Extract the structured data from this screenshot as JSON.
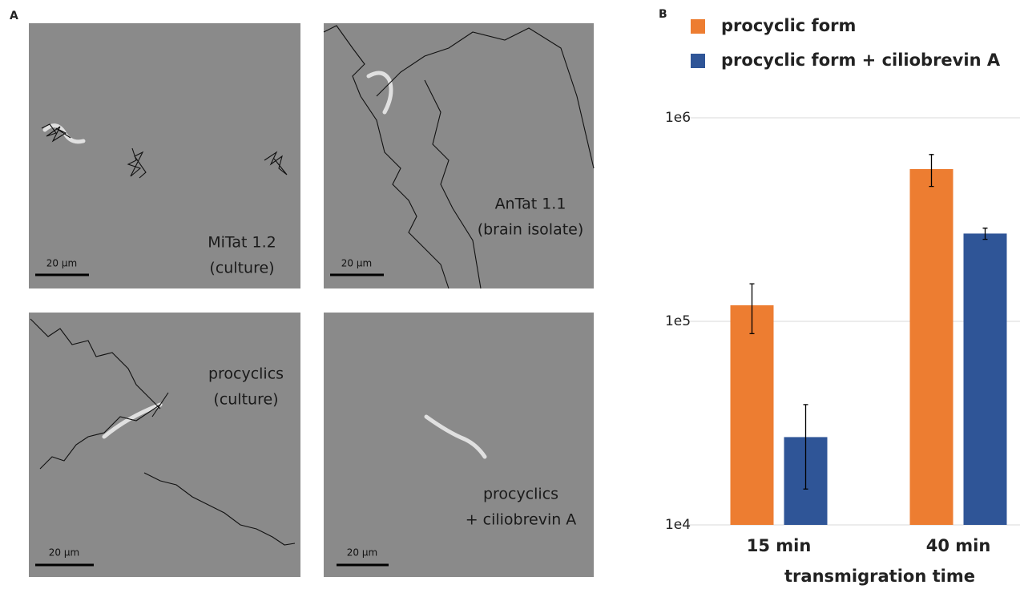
{
  "panel_a": {
    "label": "A",
    "images": [
      {
        "caption": [
          "MiTat 1.2",
          "(culture)"
        ],
        "scale_bar": "20 µm"
      },
      {
        "caption": [
          "AnTat 1.1",
          "(brain isolate)"
        ],
        "scale_bar": "20 µm"
      },
      {
        "caption": [
          "procyclics",
          "(culture)"
        ],
        "scale_bar": "20 µm"
      },
      {
        "caption": [
          "procyclics",
          "+ ciliobrevin A"
        ],
        "scale_bar": "20 µm"
      }
    ]
  },
  "chart_data": {
    "type": "bar",
    "panel_label": "B",
    "x_label": "transmigration time",
    "categories": [
      "15 min",
      "40 min"
    ],
    "series": [
      {
        "name": "procyclic form",
        "color": "#ed7d31",
        "values": [
          120000,
          560000
        ],
        "errors": [
          33000,
          100000
        ]
      },
      {
        "name": "procyclic form + ciliobrevin A",
        "color": "#2f5597",
        "values": [
          27000,
          270000
        ],
        "errors": [
          12000,
          17000
        ]
      }
    ],
    "log_scale": true,
    "ylim": [
      10000,
      1000000
    ],
    "yticks": [
      {
        "value": 10000,
        "label": "1e4"
      },
      {
        "value": 100000,
        "label": "1e5"
      },
      {
        "value": 1000000,
        "label": "1e6"
      }
    ],
    "grid": true
  }
}
